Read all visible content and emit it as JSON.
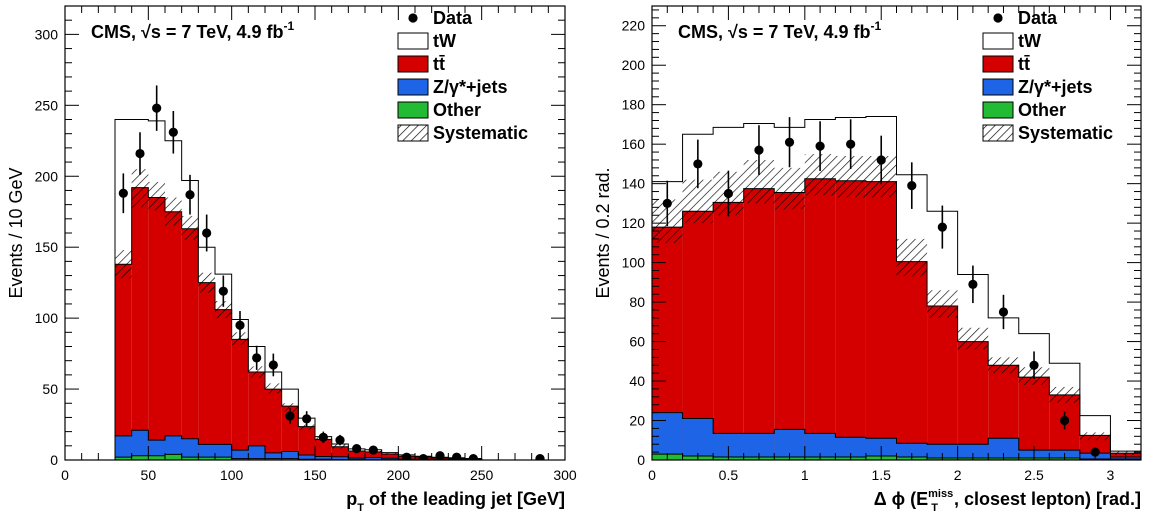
{
  "chart_data": [
    {
      "type": "bar",
      "stacked": true,
      "header": "CMS, √s = 7 TeV, 4.9 fb",
      "header_sup": "-1",
      "xlabel_main": "p",
      "xlabel_sub": "T",
      "xlabel_rest": " of the leading jet [GeV]",
      "ylabel": "Events / 10 GeV",
      "xlim": [
        0,
        300
      ],
      "ylim": [
        0,
        320
      ],
      "x_ticks": [
        0,
        50,
        100,
        150,
        200,
        250,
        300
      ],
      "y_ticks": [
        0,
        50,
        100,
        150,
        200,
        250,
        300
      ],
      "bin_edges": [
        30,
        40,
        50,
        60,
        70,
        80,
        90,
        100,
        110,
        120,
        130,
        140,
        150,
        160,
        170,
        180,
        190,
        200,
        210,
        220,
        230,
        240,
        250
      ],
      "series": [
        {
          "name": "Other",
          "color": "#22bb33",
          "values": [
            2,
            3,
            3,
            4,
            2,
            2,
            2,
            1,
            1,
            1,
            1,
            0.5,
            0.5,
            0.3,
            0.3,
            0.2,
            0.2,
            0.1,
            0.1,
            0.1,
            0.1,
            0.1
          ]
        },
        {
          "name": "Z/γ*+jets",
          "color": "#1e64e6",
          "values": [
            15,
            18,
            11,
            13,
            13,
            9,
            9,
            6,
            9,
            4,
            5,
            3,
            2,
            2,
            1,
            1.5,
            1,
            0.5,
            0.5,
            0.3,
            0.3,
            0.2
          ]
        },
        {
          "name": "tt̄",
          "color": "#d40000",
          "values": [
            121,
            171,
            171,
            158,
            148,
            114,
            95,
            78,
            52,
            45,
            32,
            20,
            12,
            7,
            5,
            4,
            3,
            2,
            1.5,
            1,
            0.7,
            0.5
          ]
        },
        {
          "name": "tW",
          "color": "#ffffff",
          "values": [
            102,
            48,
            54,
            50,
            34,
            25,
            25,
            14,
            18,
            12,
            12,
            6,
            2,
            2,
            1.5,
            1.5,
            1,
            1,
            0.5,
            0.5,
            0.5,
            0.3
          ]
        }
      ],
      "syst_band": [
        {
          "lo": 128,
          "hi": 148
        },
        {
          "lo": 178,
          "hi": 205
        },
        {
          "lo": 176,
          "hi": 196
        },
        {
          "lo": 165,
          "hi": 185
        },
        {
          "lo": 155,
          "hi": 172
        },
        {
          "lo": 118,
          "hi": 132
        },
        {
          "lo": 100,
          "hi": 112
        },
        {
          "lo": 81,
          "hi": 90
        },
        {
          "lo": 58,
          "hi": 66
        },
        {
          "lo": 47,
          "hi": 54
        },
        {
          "lo": 34,
          "hi": 40
        },
        {
          "lo": 21,
          "hi": 25
        },
        {
          "lo": 13,
          "hi": 16
        },
        {
          "lo": 8,
          "hi": 11
        },
        {
          "lo": 6,
          "hi": 8
        },
        {
          "lo": 5,
          "hi": 7
        },
        {
          "lo": 3.5,
          "hi": 5
        },
        {
          "lo": 2.5,
          "hi": 3.5
        },
        {
          "lo": 1.8,
          "hi": 2.6
        },
        {
          "lo": 1.2,
          "hi": 1.8
        },
        {
          "lo": 0.8,
          "hi": 1.4
        },
        {
          "lo": 0.5,
          "hi": 1
        }
      ],
      "data_points": [
        {
          "x": 35,
          "y": 188,
          "err": 14
        },
        {
          "x": 45,
          "y": 216,
          "err": 15
        },
        {
          "x": 55,
          "y": 248,
          "err": 16
        },
        {
          "x": 65,
          "y": 231,
          "err": 15
        },
        {
          "x": 75,
          "y": 187,
          "err": 14
        },
        {
          "x": 85,
          "y": 160,
          "err": 13
        },
        {
          "x": 95,
          "y": 119,
          "err": 11
        },
        {
          "x": 105,
          "y": 95,
          "err": 10
        },
        {
          "x": 115,
          "y": 72,
          "err": 8.5
        },
        {
          "x": 125,
          "y": 67,
          "err": 8
        },
        {
          "x": 135,
          "y": 31,
          "err": 5.5
        },
        {
          "x": 145,
          "y": 29,
          "err": 5.4
        },
        {
          "x": 155,
          "y": 16,
          "err": 4
        },
        {
          "x": 165,
          "y": 14,
          "err": 3.7
        },
        {
          "x": 175,
          "y": 8,
          "err": 2.8
        },
        {
          "x": 185,
          "y": 7,
          "err": 2.6
        },
        {
          "x": 205,
          "y": 2,
          "err": 1.4
        },
        {
          "x": 215,
          "y": 1,
          "err": 1
        },
        {
          "x": 225,
          "y": 3,
          "err": 1.7
        },
        {
          "x": 235,
          "y": 2,
          "err": 1.4
        },
        {
          "x": 245,
          "y": 1,
          "err": 1
        },
        {
          "x": 285,
          "y": 1,
          "err": 1
        }
      ]
    },
    {
      "type": "bar",
      "stacked": true,
      "header": "CMS, √s = 7 TeV, 4.9 fb",
      "header_sup": "-1",
      "xlabel_main": "Δ ϕ (E",
      "xlabel_sub": "T",
      "xlabel_sup": "miss",
      "xlabel_rest": ", closest lepton) [rad.]",
      "ylabel": "Events / 0.2 rad.",
      "xlim": [
        0,
        3.2
      ],
      "ylim": [
        0,
        230
      ],
      "x_ticks": [
        0,
        0.5,
        1,
        1.5,
        2,
        2.5,
        3
      ],
      "x_tick_labels": [
        "0",
        "0.5",
        "1",
        "1.5",
        "2",
        "2.5",
        "3"
      ],
      "y_ticks": [
        0,
        20,
        40,
        60,
        80,
        100,
        120,
        140,
        160,
        180,
        200,
        220
      ],
      "bin_edges": [
        0,
        0.2,
        0.4,
        0.6,
        0.8,
        1.0,
        1.2,
        1.4,
        1.6,
        1.8,
        2.0,
        2.2,
        2.4,
        2.6,
        2.8,
        3.0,
        3.2
      ],
      "series": [
        {
          "name": "Other",
          "color": "#22bb33",
          "values": [
            3,
            2,
            1.5,
            1.5,
            1.5,
            1.5,
            1.5,
            2,
            1.5,
            1,
            1,
            1,
            1,
            1,
            0.5,
            0.5
          ]
        },
        {
          "name": "Z/γ*+jets",
          "color": "#1e64e6",
          "values": [
            21,
            19,
            12,
            12,
            14,
            12,
            10,
            9,
            7,
            7,
            7,
            10,
            4,
            4,
            3,
            1
          ]
        },
        {
          "name": "tt̄",
          "color": "#d40000",
          "values": [
            94,
            105,
            117,
            124,
            120,
            129,
            130,
            130,
            92,
            70,
            52,
            37,
            37,
            28,
            9,
            2
          ]
        },
        {
          "name": "tW",
          "color": "#ffffff",
          "values": [
            23,
            39,
            38,
            33,
            33,
            30,
            32,
            33,
            44,
            48,
            34,
            24,
            22,
            16,
            10,
            1
          ]
        }
      ],
      "syst_band": [
        {
          "lo": 110,
          "hi": 132
        },
        {
          "lo": 120,
          "hi": 142
        },
        {
          "lo": 124,
          "hi": 146
        },
        {
          "lo": 130,
          "hi": 152
        },
        {
          "lo": 127,
          "hi": 148
        },
        {
          "lo": 134,
          "hi": 155
        },
        {
          "lo": 133,
          "hi": 154
        },
        {
          "lo": 133,
          "hi": 154
        },
        {
          "lo": 93,
          "hi": 112
        },
        {
          "lo": 72,
          "hi": 86
        },
        {
          "lo": 56,
          "hi": 67
        },
        {
          "lo": 44,
          "hi": 52
        },
        {
          "lo": 38,
          "hi": 47
        },
        {
          "lo": 29,
          "hi": 37
        },
        {
          "lo": 10,
          "hi": 14
        },
        {
          "lo": 2.5,
          "hi": 4.5
        }
      ],
      "data_points": [
        {
          "x": 0.1,
          "y": 130,
          "err": 11.5
        },
        {
          "x": 0.3,
          "y": 150,
          "err": 12.3
        },
        {
          "x": 0.5,
          "y": 135,
          "err": 11.6
        },
        {
          "x": 0.7,
          "y": 157,
          "err": 12.6
        },
        {
          "x": 0.9,
          "y": 161,
          "err": 12.7
        },
        {
          "x": 1.1,
          "y": 159,
          "err": 12.6
        },
        {
          "x": 1.3,
          "y": 160,
          "err": 12.6
        },
        {
          "x": 1.5,
          "y": 152,
          "err": 12.3
        },
        {
          "x": 1.7,
          "y": 139,
          "err": 11.8
        },
        {
          "x": 1.9,
          "y": 118,
          "err": 10.9
        },
        {
          "x": 2.1,
          "y": 89,
          "err": 9.5
        },
        {
          "x": 2.3,
          "y": 75,
          "err": 8.7
        },
        {
          "x": 2.5,
          "y": 48,
          "err": 7
        },
        {
          "x": 2.7,
          "y": 20,
          "err": 4.5
        },
        {
          "x": 2.9,
          "y": 4,
          "err": 2
        }
      ]
    }
  ],
  "legend": {
    "data_label": "Data",
    "tw_label": "tW",
    "tt_label": "tt̄",
    "z_label": "Z/γ*+jets",
    "other_label": "Other",
    "syst_label": "Systematic"
  }
}
